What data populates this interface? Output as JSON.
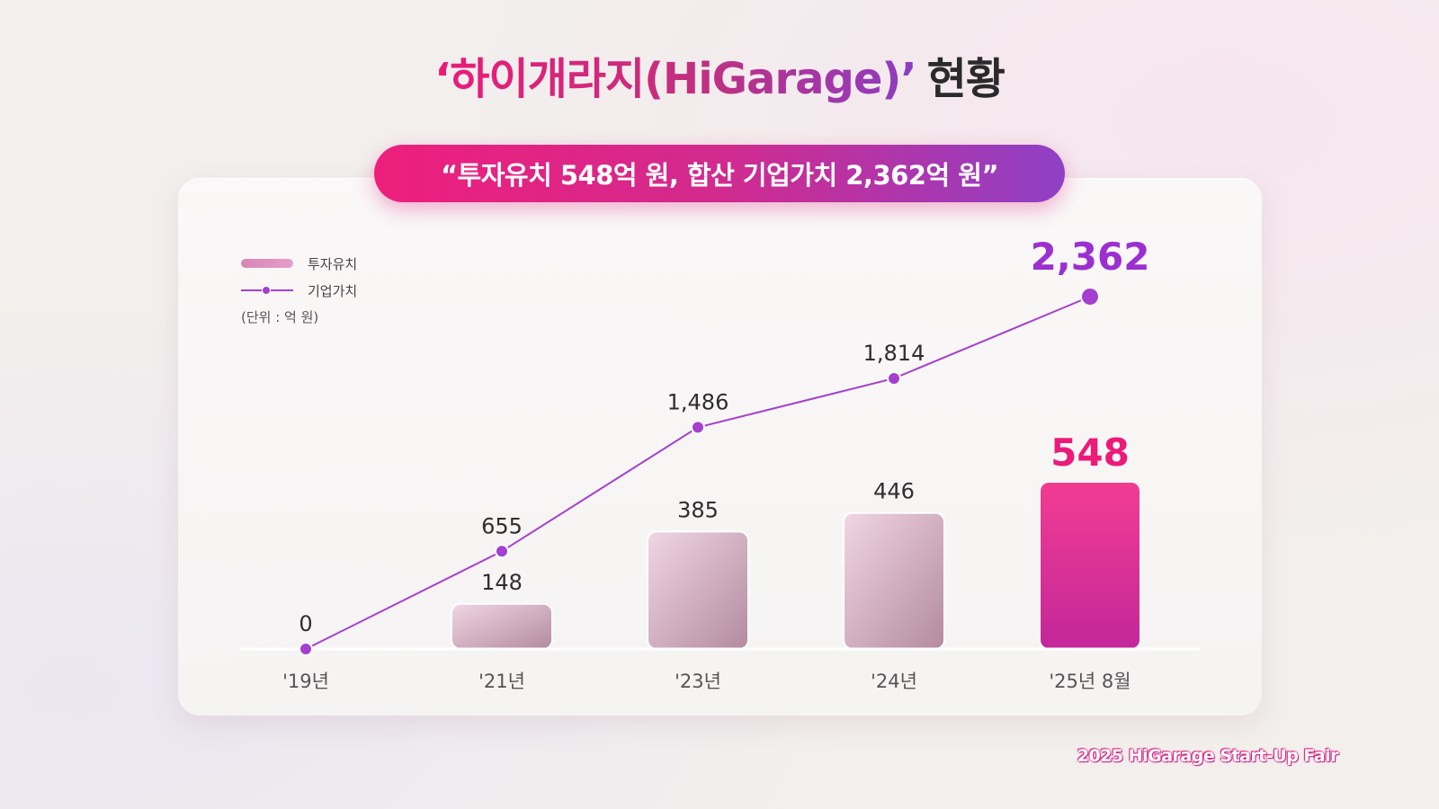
{
  "header": {
    "title_highlight": "‘하이개라지(HiGarage)’",
    "title_rest": "현황"
  },
  "banner": {
    "text": "“투자유치 548억 원, 합산 기업가치 2,362억 원”"
  },
  "legend": {
    "bar_label": "투자유치",
    "line_label": "기업가치",
    "unit": "(단위 : 억 원)"
  },
  "footer": {
    "text": "2025 HiGarage Start-Up Fair"
  },
  "colors": {
    "accent_pink": "#ec1a78",
    "accent_purple": "#9b3fd0",
    "bar_muted": "#cfa9bd",
    "bar_highlight": "#e6237f"
  },
  "chart_data": {
    "type": "bar",
    "categories": [
      "'19년",
      "'21년",
      "'23년",
      "'24년",
      "'25년 8월"
    ],
    "series": [
      {
        "name": "투자유치",
        "type": "bar",
        "values": [
          0,
          148,
          385,
          446,
          548
        ],
        "value_labels": [
          "",
          "148",
          "385",
          "446",
          "548"
        ]
      },
      {
        "name": "기업가치",
        "type": "line",
        "values": [
          0,
          655,
          1486,
          1814,
          2362
        ],
        "value_labels": [
          "0",
          "655",
          "1,486",
          "1,814",
          "2,362"
        ]
      }
    ],
    "highlight_index": 4,
    "legend_position": "top-left",
    "grid": false
  }
}
